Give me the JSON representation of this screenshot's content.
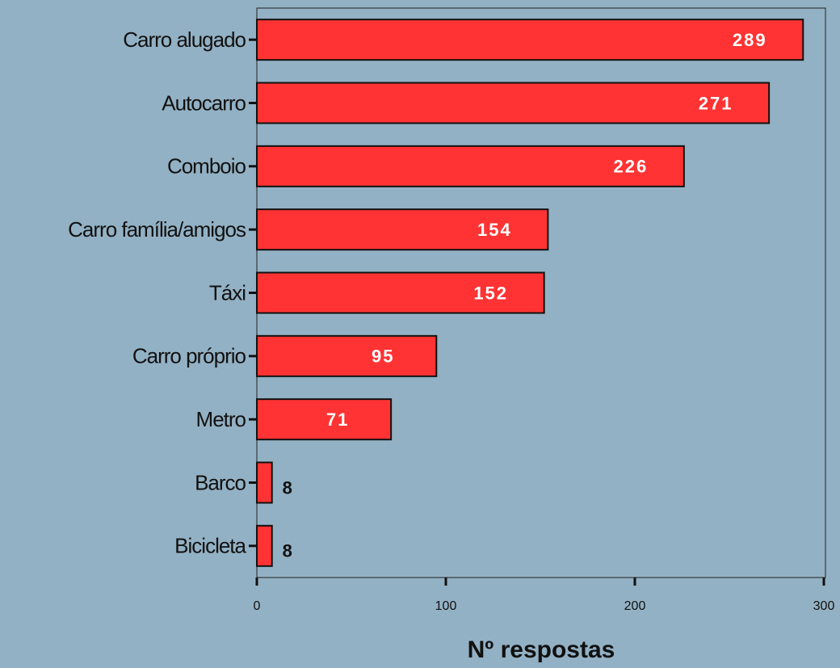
{
  "chart_data": {
    "type": "bar",
    "orientation": "horizontal",
    "categories": [
      "Carro alugado",
      "Autocarro",
      "Comboio",
      "Carro família/amigos",
      "Táxi",
      "Carro próprio",
      "Metro",
      "Barco",
      "Bicicleta"
    ],
    "values": [
      289,
      271,
      226,
      154,
      152,
      95,
      71,
      8,
      8
    ],
    "color": "#ff3333",
    "xlabel": "Nº respostas",
    "xlim": [
      0,
      300
    ],
    "xticks": [
      0,
      100,
      200,
      300
    ],
    "grid": false
  }
}
